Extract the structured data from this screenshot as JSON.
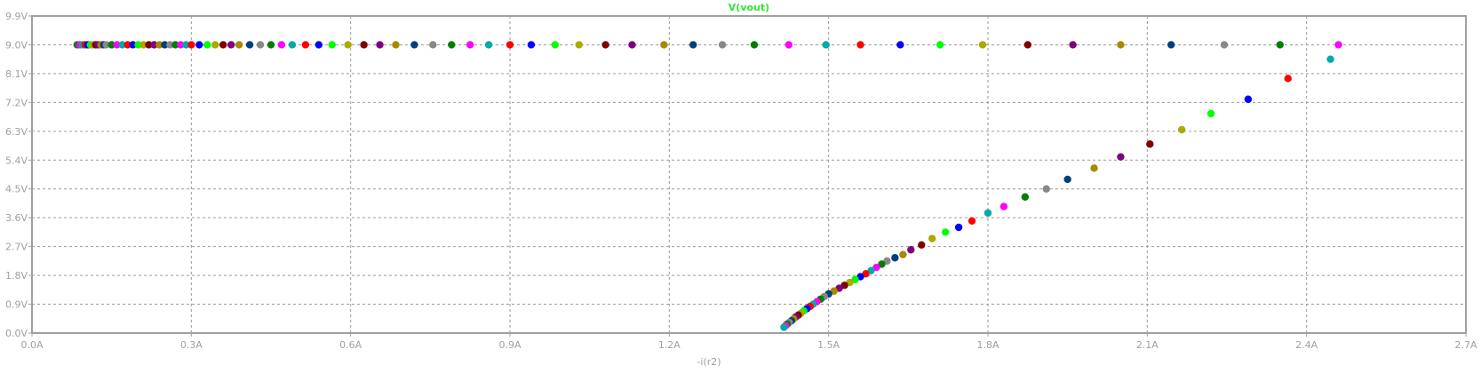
{
  "chart_data": {
    "type": "scatter",
    "title": "V(vout)",
    "xlabel": "-i(r2)",
    "ylabel": "",
    "xlim": [
      0,
      2.7
    ],
    "ylim": [
      0,
      9.9
    ],
    "grid": true,
    "xticks": [
      {
        "value": 0.0,
        "label": "0.0A"
      },
      {
        "value": 0.3,
        "label": "0.3A"
      },
      {
        "value": 0.6,
        "label": "0.6A"
      },
      {
        "value": 0.9,
        "label": "0.9A"
      },
      {
        "value": 1.2,
        "label": "1.2A"
      },
      {
        "value": 1.5,
        "label": "1.5A"
      },
      {
        "value": 1.8,
        "label": "1.8A"
      },
      {
        "value": 2.1,
        "label": "2.1A"
      },
      {
        "value": 2.4,
        "label": "2.4A"
      },
      {
        "value": 2.7,
        "label": "2.7A"
      }
    ],
    "yticks": [
      {
        "value": 0.0,
        "label": "0.0V"
      },
      {
        "value": 0.9,
        "label": "0.9V"
      },
      {
        "value": 1.8,
        "label": "1.8V"
      },
      {
        "value": 2.7,
        "label": "2.7V"
      },
      {
        "value": 3.6,
        "label": "3.6V"
      },
      {
        "value": 4.5,
        "label": "4.5V"
      },
      {
        "value": 5.4,
        "label": "5.4V"
      },
      {
        "value": 6.3,
        "label": "6.3V"
      },
      {
        "value": 7.2,
        "label": "7.2V"
      },
      {
        "value": 8.1,
        "label": "8.1V"
      },
      {
        "value": 9.0,
        "label": "9.0V"
      },
      {
        "value": 9.9,
        "label": "9.9V"
      }
    ],
    "colors": [
      "#007f00",
      "#ff00ff",
      "#00aaaa",
      "#ff0000",
      "#0000ff",
      "#00ff00",
      "#aaaa00",
      "#7f0000",
      "#7f007f",
      "#aa8800",
      "#003f7f",
      "#888888"
    ],
    "series": [
      {
        "points": [
          [
            0.085,
            9.0
          ],
          [
            0.09,
            9.0
          ],
          [
            0.095,
            9.0
          ],
          [
            0.1,
            9.0
          ],
          [
            0.105,
            9.0
          ],
          [
            0.11,
            9.0
          ],
          [
            0.115,
            9.0
          ],
          [
            0.12,
            9.0
          ],
          [
            0.125,
            9.0
          ],
          [
            0.13,
            9.0
          ],
          [
            0.135,
            9.0
          ],
          [
            0.14,
            9.0
          ],
          [
            0.15,
            9.0
          ],
          [
            0.16,
            9.0
          ],
          [
            0.17,
            9.0
          ],
          [
            0.18,
            9.0
          ],
          [
            0.19,
            9.0
          ],
          [
            0.2,
            9.0
          ],
          [
            0.21,
            9.0
          ],
          [
            0.22,
            9.0
          ],
          [
            0.23,
            9.0
          ],
          [
            0.24,
            9.0
          ],
          [
            0.25,
            9.0
          ],
          [
            0.26,
            9.0
          ],
          [
            0.27,
            9.0
          ],
          [
            0.28,
            9.0
          ],
          [
            0.29,
            9.0
          ],
          [
            0.3,
            9.0
          ],
          [
            0.315,
            9.0
          ],
          [
            0.33,
            9.0
          ],
          [
            0.345,
            9.0
          ],
          [
            0.36,
            9.0
          ],
          [
            0.375,
            9.0
          ],
          [
            0.39,
            9.0
          ],
          [
            0.41,
            9.0
          ],
          [
            0.43,
            9.0
          ],
          [
            0.45,
            9.0
          ],
          [
            0.47,
            9.0
          ],
          [
            0.49,
            9.0
          ],
          [
            0.515,
            9.0
          ],
          [
            0.54,
            9.0
          ],
          [
            0.565,
            9.0
          ],
          [
            0.595,
            9.0
          ],
          [
            0.625,
            9.0
          ],
          [
            0.655,
            9.0
          ],
          [
            0.685,
            9.0
          ],
          [
            0.72,
            9.0
          ],
          [
            0.755,
            9.0
          ],
          [
            0.79,
            9.0
          ],
          [
            0.825,
            9.0
          ],
          [
            0.86,
            9.0
          ],
          [
            0.9,
            9.0
          ],
          [
            0.94,
            9.0
          ],
          [
            0.985,
            9.0
          ],
          [
            1.03,
            9.0
          ],
          [
            1.08,
            9.0
          ],
          [
            1.13,
            9.0
          ],
          [
            1.19,
            9.0
          ],
          [
            1.245,
            9.0
          ],
          [
            1.3,
            9.0
          ],
          [
            1.36,
            9.0
          ],
          [
            1.425,
            9.0
          ],
          [
            1.495,
            9.0
          ],
          [
            1.56,
            9.0
          ],
          [
            1.635,
            9.0
          ],
          [
            1.71,
            9.0
          ],
          [
            1.79,
            9.0
          ],
          [
            1.875,
            9.0
          ],
          [
            1.96,
            9.0
          ],
          [
            2.05,
            9.0
          ],
          [
            2.145,
            9.0
          ],
          [
            2.245,
            9.0
          ],
          [
            2.35,
            9.0
          ],
          [
            2.46,
            9.0
          ],
          [
            2.445,
            8.55
          ],
          [
            2.365,
            7.95
          ],
          [
            2.29,
            7.3
          ],
          [
            2.22,
            6.85
          ],
          [
            2.165,
            6.35
          ],
          [
            2.105,
            5.9
          ],
          [
            2.05,
            5.5
          ],
          [
            2.0,
            5.15
          ],
          [
            1.95,
            4.8
          ],
          [
            1.91,
            4.5
          ],
          [
            1.87,
            4.25
          ],
          [
            1.83,
            3.95
          ],
          [
            1.8,
            3.75
          ],
          [
            1.77,
            3.5
          ],
          [
            1.745,
            3.3
          ],
          [
            1.72,
            3.15
          ],
          [
            1.695,
            2.95
          ],
          [
            1.675,
            2.75
          ],
          [
            1.655,
            2.6
          ],
          [
            1.64,
            2.45
          ],
          [
            1.625,
            2.35
          ],
          [
            1.61,
            2.25
          ],
          [
            1.6,
            2.15
          ],
          [
            1.59,
            2.05
          ],
          [
            1.58,
            1.95
          ],
          [
            1.57,
            1.85
          ],
          [
            1.56,
            1.76
          ],
          [
            1.55,
            1.67
          ],
          [
            1.54,
            1.58
          ],
          [
            1.53,
            1.49
          ],
          [
            1.52,
            1.4
          ],
          [
            1.51,
            1.31
          ],
          [
            1.5,
            1.22
          ],
          [
            1.492,
            1.14
          ],
          [
            1.485,
            1.06
          ],
          [
            1.478,
            0.98
          ],
          [
            1.471,
            0.9
          ],
          [
            1.465,
            0.83
          ],
          [
            1.459,
            0.76
          ],
          [
            1.453,
            0.69
          ],
          [
            1.448,
            0.62
          ],
          [
            1.443,
            0.56
          ],
          [
            1.438,
            0.5
          ],
          [
            1.434,
            0.44
          ],
          [
            1.43,
            0.38
          ],
          [
            1.426,
            0.33
          ],
          [
            1.422,
            0.28
          ],
          [
            1.419,
            0.23
          ],
          [
            1.416,
            0.18
          ]
        ]
      }
    ]
  }
}
